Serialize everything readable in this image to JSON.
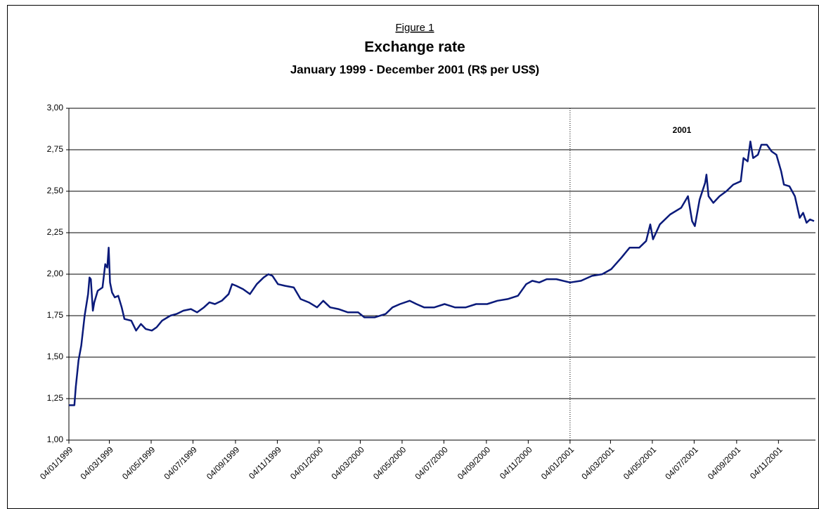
{
  "chart_data": {
    "type": "line",
    "figure_label": "Figure 1",
    "title": "Exchange rate",
    "subtitle": "January 1999 - December 2001 (R$ per US$)",
    "annotation": {
      "text": "2001",
      "x": "2001-01-04"
    },
    "x": [
      "1999-01-04",
      "1999-01-12",
      "1999-01-14",
      "1999-01-18",
      "1999-01-22",
      "1999-01-27",
      "1999-02-01",
      "1999-02-03",
      "1999-02-05",
      "1999-02-08",
      "1999-02-10",
      "1999-02-15",
      "1999-02-22",
      "1999-02-26",
      "1999-03-01",
      "1999-03-03",
      "1999-03-05",
      "1999-03-08",
      "1999-03-12",
      "1999-03-17",
      "1999-03-22",
      "1999-03-26",
      "1999-04-05",
      "1999-04-12",
      "1999-04-19",
      "1999-04-26",
      "1999-05-05",
      "1999-05-12",
      "1999-05-20",
      "1999-06-01",
      "1999-06-10",
      "1999-06-20",
      "1999-07-01",
      "1999-07-10",
      "1999-07-20",
      "1999-07-28",
      "1999-08-05",
      "1999-08-15",
      "1999-08-25",
      "1999-08-30",
      "1999-09-05",
      "1999-09-15",
      "1999-09-25",
      "1999-10-05",
      "1999-10-15",
      "1999-10-22",
      "1999-10-28",
      "1999-11-05",
      "1999-11-15",
      "1999-11-28",
      "1999-12-08",
      "1999-12-20",
      "2000-01-01",
      "2000-01-10",
      "2000-01-20",
      "2000-02-01",
      "2000-02-15",
      "2000-03-01",
      "2000-03-10",
      "2000-03-25",
      "2000-04-10",
      "2000-04-20",
      "2000-05-01",
      "2000-05-15",
      "2000-05-25",
      "2000-06-05",
      "2000-06-20",
      "2000-07-05",
      "2000-07-20",
      "2000-08-05",
      "2000-08-20",
      "2000-09-05",
      "2000-09-20",
      "2000-10-05",
      "2000-10-20",
      "2000-11-01",
      "2000-11-10",
      "2000-11-20",
      "2000-12-01",
      "2000-12-15",
      "2001-01-04",
      "2001-01-20",
      "2001-02-05",
      "2001-02-20",
      "2001-03-05",
      "2001-03-20",
      "2001-04-01",
      "2001-04-15",
      "2001-04-25",
      "2001-05-01",
      "2001-05-05",
      "2001-05-15",
      "2001-05-30",
      "2001-06-15",
      "2001-06-25",
      "2001-07-01",
      "2001-07-05",
      "2001-07-12",
      "2001-07-20",
      "2001-07-22",
      "2001-07-25",
      "2001-08-01",
      "2001-08-10",
      "2001-08-20",
      "2001-08-30",
      "2001-09-10",
      "2001-09-14",
      "2001-09-20",
      "2001-09-24",
      "2001-09-28",
      "2001-10-05",
      "2001-10-10",
      "2001-10-18",
      "2001-10-25",
      "2001-11-01",
      "2001-11-08",
      "2001-11-12",
      "2001-11-20",
      "2001-11-28",
      "2001-12-05",
      "2001-12-10",
      "2001-12-15",
      "2001-12-20",
      "2001-12-26"
    ],
    "series": [
      {
        "color": "#0a1a7a",
        "values": [
          1.21,
          1.21,
          1.32,
          1.48,
          1.57,
          1.75,
          1.88,
          1.98,
          1.97,
          1.78,
          1.83,
          1.9,
          1.92,
          2.06,
          2.04,
          2.16,
          1.95,
          1.89,
          1.86,
          1.87,
          1.8,
          1.73,
          1.72,
          1.66,
          1.7,
          1.67,
          1.66,
          1.68,
          1.72,
          1.75,
          1.76,
          1.78,
          1.79,
          1.77,
          1.8,
          1.83,
          1.82,
          1.84,
          1.88,
          1.94,
          1.93,
          1.91,
          1.88,
          1.94,
          1.98,
          2.0,
          1.99,
          1.94,
          1.93,
          1.92,
          1.85,
          1.83,
          1.8,
          1.84,
          1.8,
          1.79,
          1.77,
          1.77,
          1.74,
          1.74,
          1.76,
          1.8,
          1.82,
          1.84,
          1.82,
          1.8,
          1.8,
          1.82,
          1.8,
          1.8,
          1.82,
          1.82,
          1.84,
          1.85,
          1.87,
          1.94,
          1.96,
          1.95,
          1.97,
          1.97,
          1.95,
          1.96,
          1.99,
          2.0,
          2.03,
          2.1,
          2.16,
          2.16,
          2.2,
          2.3,
          2.21,
          2.3,
          2.36,
          2.4,
          2.47,
          2.32,
          2.29,
          2.45,
          2.55,
          2.6,
          2.47,
          2.43,
          2.47,
          2.5,
          2.54,
          2.56,
          2.7,
          2.68,
          2.8,
          2.7,
          2.72,
          2.78,
          2.78,
          2.74,
          2.72,
          2.62,
          2.54,
          2.53,
          2.47,
          2.34,
          2.37,
          2.31,
          2.33,
          2.32
        ]
      }
    ],
    "xlim": [
      "1999-01-04",
      "2001-12-28"
    ],
    "xticks": [
      {
        "value": "1999-01-04",
        "label": "04/01/1999"
      },
      {
        "value": "1999-03-04",
        "label": "04/03/1999"
      },
      {
        "value": "1999-05-04",
        "label": "04/05/1999"
      },
      {
        "value": "1999-07-04",
        "label": "04/07/1999"
      },
      {
        "value": "1999-09-04",
        "label": "04/09/1999"
      },
      {
        "value": "1999-11-04",
        "label": "04/11/1999"
      },
      {
        "value": "2000-01-04",
        "label": "04/01/2000"
      },
      {
        "value": "2000-03-04",
        "label": "04/03/2000"
      },
      {
        "value": "2000-05-04",
        "label": "04/05/2000"
      },
      {
        "value": "2000-07-04",
        "label": "04/07/2000"
      },
      {
        "value": "2000-09-04",
        "label": "04/09/2000"
      },
      {
        "value": "2000-11-04",
        "label": "04/11/2000"
      },
      {
        "value": "2001-01-04",
        "label": "04/01/2001"
      },
      {
        "value": "2001-03-04",
        "label": "04/03/2001"
      },
      {
        "value": "2001-05-04",
        "label": "04/05/2001"
      },
      {
        "value": "2001-07-04",
        "label": "04/07/2001"
      },
      {
        "value": "2001-09-04",
        "label": "04/09/2001"
      },
      {
        "value": "2001-11-04",
        "label": "04/11/2001"
      }
    ],
    "ylim": [
      1,
      3
    ],
    "yticks": [
      {
        "value": 1,
        "label": "1,00"
      },
      {
        "value": 1.25,
        "label": "1,25"
      },
      {
        "value": 1.5,
        "label": "1,50"
      },
      {
        "value": 1.75,
        "label": "1,75"
      },
      {
        "value": 2,
        "label": "2,00"
      },
      {
        "value": 2.25,
        "label": "2,25"
      },
      {
        "value": 2.5,
        "label": "2,50"
      },
      {
        "value": 2.75,
        "label": "2,75"
      },
      {
        "value": 3,
        "label": "3,00"
      }
    ],
    "grid": true
  }
}
